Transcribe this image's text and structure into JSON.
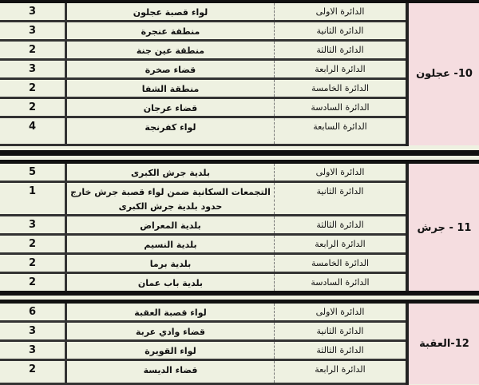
{
  "sections": [
    {
      "governorate": "10- عجلون",
      "rows": [
        {
          "circle": "الدائرة الاولى",
          "name": "لواء قصبة عجلون",
          "seats": "3"
        },
        {
          "circle": "الدائرة الثانية",
          "name": "منطقة عنجرة",
          "seats": "3"
        },
        {
          "circle": "الدائرة الثالثة",
          "name": "منطقة عين جنة",
          "seats": "2"
        },
        {
          "circle": "الدائرة الرابعة",
          "name": "قضاء صخرة",
          "seats": "3"
        },
        {
          "circle": "الدائرة الخامسة",
          "name": "منطقة الشفا",
          "seats": "2"
        },
        {
          "circle": "الدائرة السادسة",
          "name": "قضاء عرجان",
          "seats": "2"
        },
        {
          "circle": "الدائرة السابعة",
          "name": "لواء كفرنجة",
          "seats": "4"
        }
      ]
    },
    {
      "governorate": "11 - جرش",
      "rows": [
        {
          "circle": "الدائرة الاولى",
          "name": "بلدية جرش الكبرى",
          "seats": "5"
        },
        {
          "circle": "الدائرة الثانية",
          "name": "التجمعات السكانية ضمن لواء قصبة جرش خارج حدود بلدية جرش الكبرى",
          "seats": "1"
        },
        {
          "circle": "الدائرة الثالثة",
          "name": "بلدية المعراض",
          "seats": "3"
        },
        {
          "circle": "الدائرة الرابعة",
          "name": "بلدية النسيم",
          "seats": "2"
        },
        {
          "circle": "الدائرة الخامسة",
          "name": "بلدية برما",
          "seats": "2"
        },
        {
          "circle": "الدائرة السادسة",
          "name": "بلدية باب عمان",
          "seats": "2"
        }
      ]
    },
    {
      "governorate": "12-العقبة",
      "rows": [
        {
          "circle": "الدائرة الاولى",
          "name": "لواء قصبة العقبة",
          "seats": "6"
        },
        {
          "circle": "الدائرة الثانية",
          "name": "قضاء وادي عربة",
          "seats": "3"
        },
        {
          "circle": "الدائرة الثالثة",
          "name": "لواء القويرة",
          "seats": "3"
        },
        {
          "circle": "الدائرة الرابعة",
          "name": "قضاء الديسة",
          "seats": "2"
        }
      ]
    }
  ]
}
